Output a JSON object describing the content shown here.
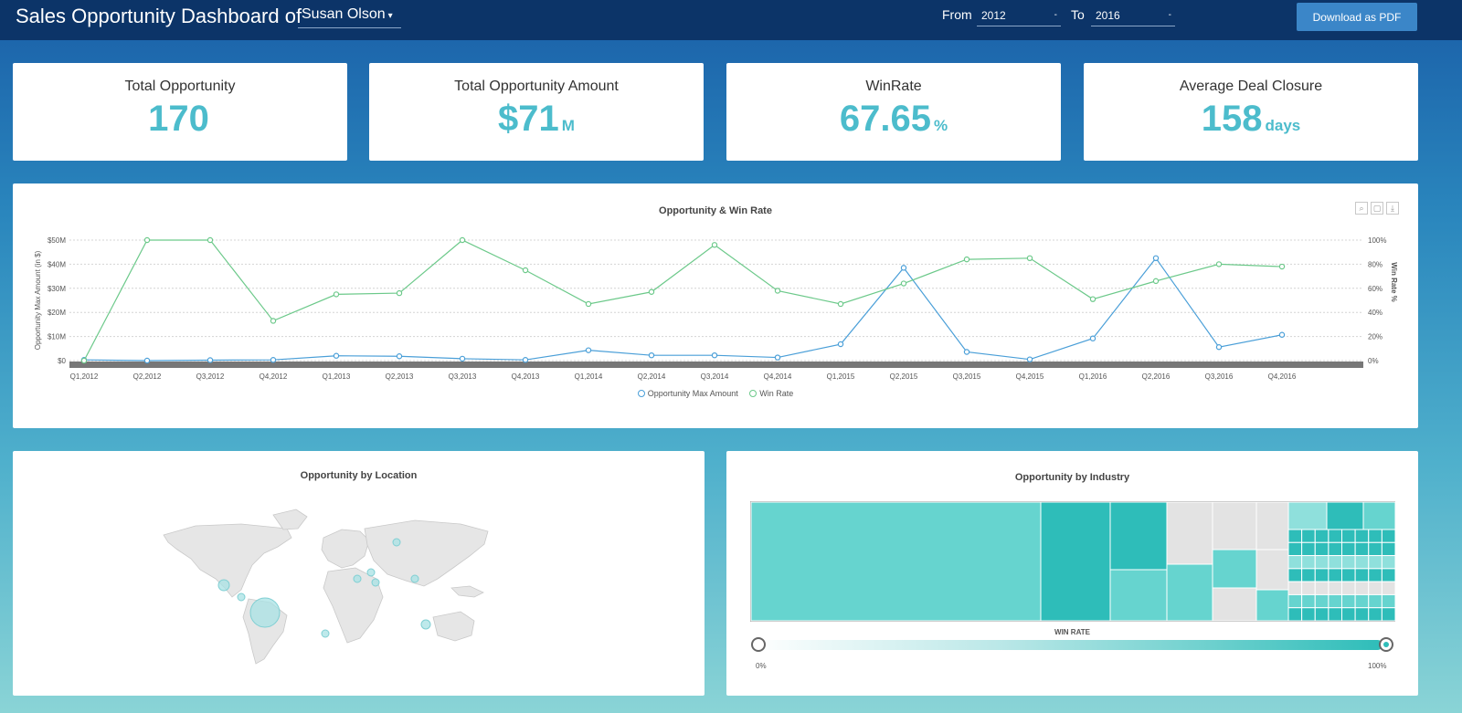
{
  "header": {
    "title": "Sales Opportunity Dashboard of",
    "user": "Susan Olson",
    "from_label": "From",
    "from_value": "2012",
    "to_label": "To",
    "to_value": "2016",
    "download_label": "Download as PDF"
  },
  "kpis": [
    {
      "title": "Total Opportunity",
      "value": "170",
      "unit": ""
    },
    {
      "title": "Total Opportunity Amount",
      "value": "$71",
      "unit": "M"
    },
    {
      "title": "WinRate",
      "value": "67.65",
      "unit": "%"
    },
    {
      "title": "Average Deal Closure",
      "value": "158",
      "unit": "days"
    }
  ],
  "chart_data": {
    "type": "line",
    "title": "Opportunity & Win Rate",
    "ylabel": "Opportunity Max Amount (in $)",
    "y2label": "Win Rate %",
    "ylim": [
      0,
      50
    ],
    "y2lim": [
      0,
      100
    ],
    "y_ticks": [
      "$0",
      "$10M",
      "$20M",
      "$30M",
      "$40M",
      "$50M"
    ],
    "y2_ticks": [
      "0%",
      "20%",
      "40%",
      "60%",
      "80%",
      "100%"
    ],
    "categories": [
      "Q1,2012",
      "Q2,2012",
      "Q3,2012",
      "Q4,2012",
      "Q1,2013",
      "Q2,2013",
      "Q3,2013",
      "Q4,2013",
      "Q1,2014",
      "Q2,2014",
      "Q3,2014",
      "Q4,2014",
      "Q1,2015",
      "Q2,2015",
      "Q3,2015",
      "Q4,2015",
      "Q1,2016",
      "Q2,2016",
      "Q3,2016",
      "Q4,2016"
    ],
    "series": [
      {
        "name": "Opportunity Max Amount",
        "axis": "left",
        "color": "#4a9fd8",
        "values": [
          0.3,
          0,
          0.2,
          0.3,
          2,
          1.8,
          0.8,
          0.3,
          4.3,
          2.2,
          2.2,
          1.3,
          6.8,
          38.5,
          3.6,
          0.5,
          9.2,
          42.5,
          5.6,
          10.7
        ]
      },
      {
        "name": "Win Rate",
        "axis": "right",
        "color": "#6cc98a",
        "values": [
          0,
          100,
          100,
          33,
          55,
          56,
          100,
          75,
          47,
          57,
          96,
          58,
          47,
          64,
          84,
          85,
          51,
          66,
          80,
          78
        ]
      }
    ],
    "grid": true,
    "legend": "bottom"
  },
  "location_panel": {
    "title": "Opportunity by Location"
  },
  "industry_panel": {
    "title": "Opportunity by Industry",
    "slider_label": "WIN RATE",
    "slider_min": "0%",
    "slider_max": "100%"
  },
  "colors": {
    "topbar": "#0c3468",
    "kpi_value": "#4cbccc",
    "treemap_light": "#66d4cf",
    "treemap_dark": "#2ebdb9",
    "treemap_gray": "#e3e3e3",
    "map_land": "#e8e8e8",
    "bubble": "#9fdfe2"
  }
}
